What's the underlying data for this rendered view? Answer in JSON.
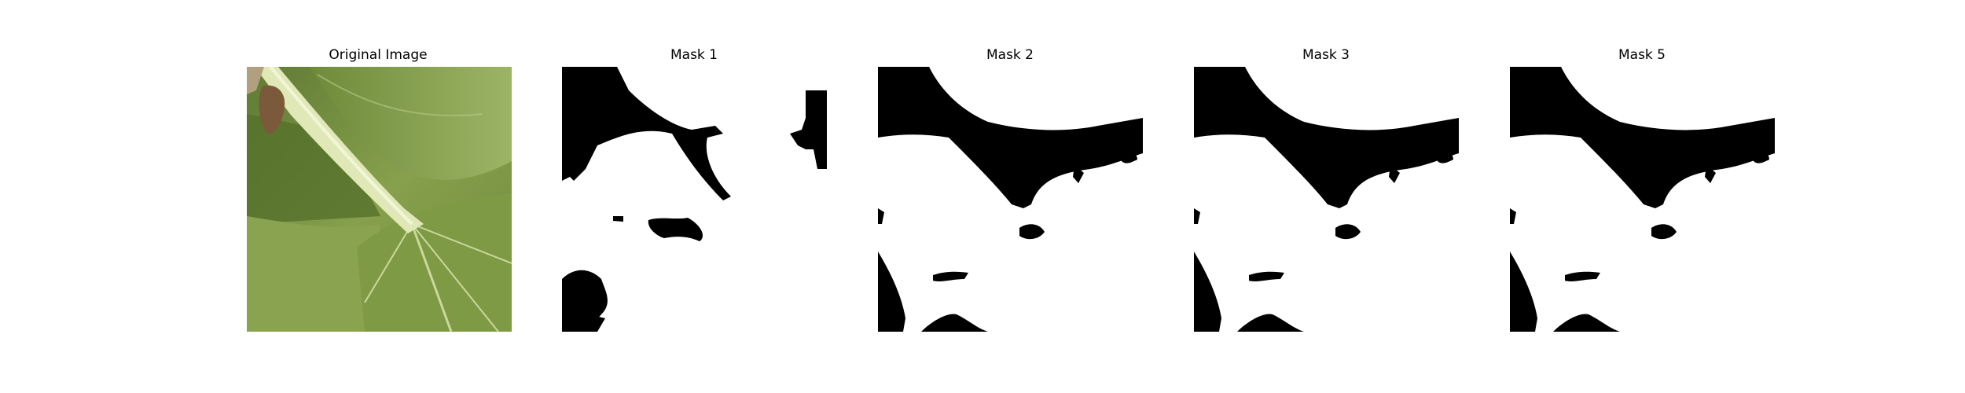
{
  "figure": {
    "panels": [
      {
        "title": "Original Image",
        "kind": "photo",
        "subject": "green leaf with pale stem"
      },
      {
        "title": "Mask 1",
        "kind": "binary-mask"
      },
      {
        "title": "Mask 2",
        "kind": "binary-mask"
      },
      {
        "title": "Mask 3",
        "kind": "binary-mask"
      },
      {
        "title": "Mask 5",
        "kind": "binary-mask"
      }
    ],
    "colors": {
      "mask_foreground": "#ffffff",
      "mask_background": "#000000",
      "leaf_dark": "#4f6a2a",
      "leaf_mid": "#7a9444",
      "leaf_light": "#a7bb6f",
      "stem": "#dfe8b6"
    }
  }
}
